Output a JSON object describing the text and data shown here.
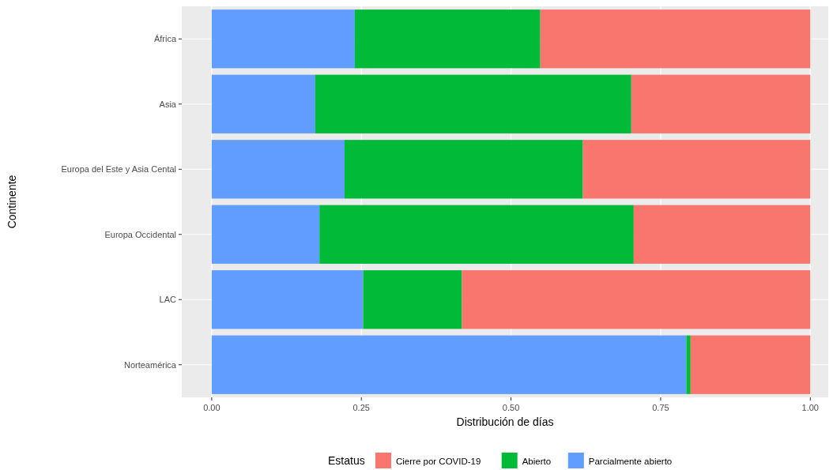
{
  "chart_data": {
    "type": "bar",
    "orientation": "horizontal",
    "stacked": true,
    "xlabel": "Distribución de días",
    "ylabel": "Continente",
    "legend_title": "Estatus",
    "legend": "bottom",
    "grid": true,
    "categories": [
      "África",
      "Asia",
      "Europa del Este y Asia Cental",
      "Europa Occidental",
      "LAC",
      "Norteamérica"
    ],
    "xlim": [
      -0.05,
      1.03
    ],
    "xticks": [
      {
        "value": 0,
        "label": "0.00"
      },
      {
        "value": 0.25,
        "label": "0.25"
      },
      {
        "value": 0.5,
        "label": "0.50"
      },
      {
        "value": 0.75,
        "label": "0.75"
      },
      {
        "value": 1,
        "label": "1.00"
      }
    ],
    "series": [
      {
        "name": "Parcialmente abierto",
        "color": "#619cff",
        "values": [
          0.239,
          0.173,
          0.222,
          0.18,
          0.253,
          0.793
        ]
      },
      {
        "name": "Abierto",
        "color": "#00ba38",
        "values": [
          0.31,
          0.528,
          0.398,
          0.525,
          0.165,
          0.007
        ]
      },
      {
        "name": "Cierre por COVID-19",
        "color": "#f8766d",
        "values": [
          0.451,
          0.299,
          0.38,
          0.295,
          0.582,
          0.2
        ]
      }
    ]
  }
}
